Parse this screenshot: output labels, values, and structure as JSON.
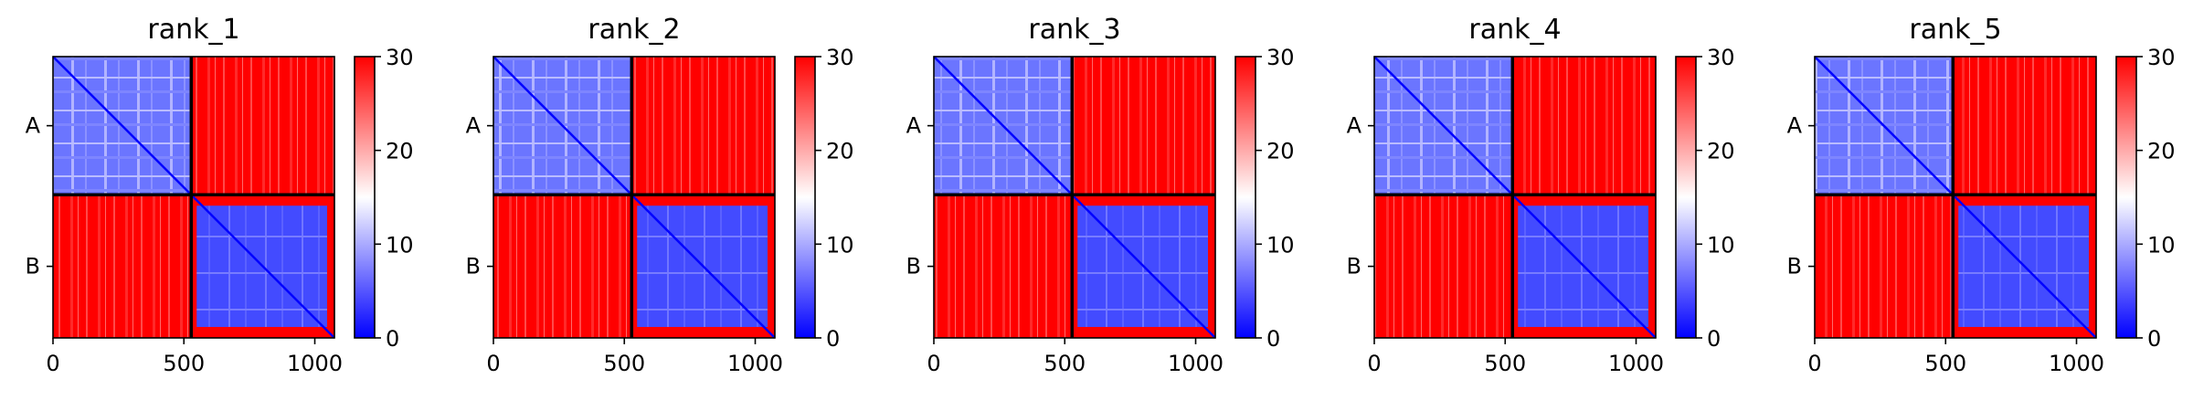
{
  "chart_data": {
    "type": "heatmap",
    "panels": [
      {
        "title": "rank_1"
      },
      {
        "title": "rank_2"
      },
      {
        "title": "rank_3"
      },
      {
        "title": "rank_4"
      },
      {
        "title": "rank_5"
      }
    ],
    "x_range": [
      0,
      1075
    ],
    "x_ticks": [
      0,
      500,
      1000
    ],
    "chain_boundary": 528,
    "y_categories": [
      "A",
      "B"
    ],
    "colorbar": {
      "range": [
        0,
        30
      ],
      "ticks": [
        0,
        10,
        20,
        30
      ],
      "colors": [
        "#0000ff",
        "#ffffff",
        "#ff0000"
      ]
    },
    "cell_values": {
      "intra_chain_A": 8,
      "intra_chain_B": 5,
      "inter_chain": 30,
      "diagonal": 0
    }
  }
}
